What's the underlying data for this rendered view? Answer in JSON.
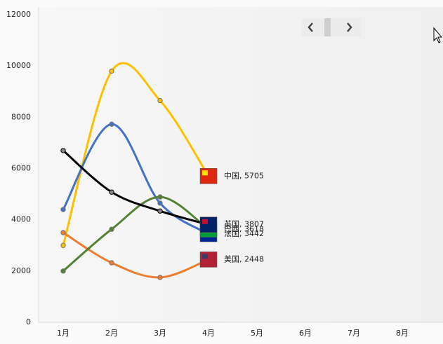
{
  "chart_data": {
    "type": "line",
    "categories": [
      "1月",
      "2月",
      "3月",
      "4月",
      "5月",
      "6月",
      "7月",
      "8月"
    ],
    "series": [
      {
        "name": "中国",
        "color": "#ffc000",
        "values": [
          3000,
          9800,
          8650,
          5705,
          null,
          null,
          null,
          null
        ]
      },
      {
        "name": "美国",
        "color": "#ed7d31",
        "values": [
          3500,
          2320,
          1750,
          2448,
          null,
          null,
          null,
          null
        ]
      },
      {
        "name": "法国",
        "color": "#4472c4",
        "values": [
          4400,
          7730,
          4650,
          3442,
          null,
          null,
          null,
          null
        ]
      },
      {
        "name": "巴西",
        "color": "#548235",
        "values": [
          2000,
          3630,
          4890,
          3618,
          null,
          null,
          null,
          null
        ]
      },
      {
        "name": "英国",
        "color": "#000000",
        "values": [
          6700,
          5080,
          4340,
          3807,
          null,
          null,
          null,
          null
        ]
      }
    ],
    "ylim": [
      0,
      12000
    ],
    "yticks": [
      0,
      2000,
      4000,
      6000,
      8000,
      10000,
      12000
    ]
  }
}
